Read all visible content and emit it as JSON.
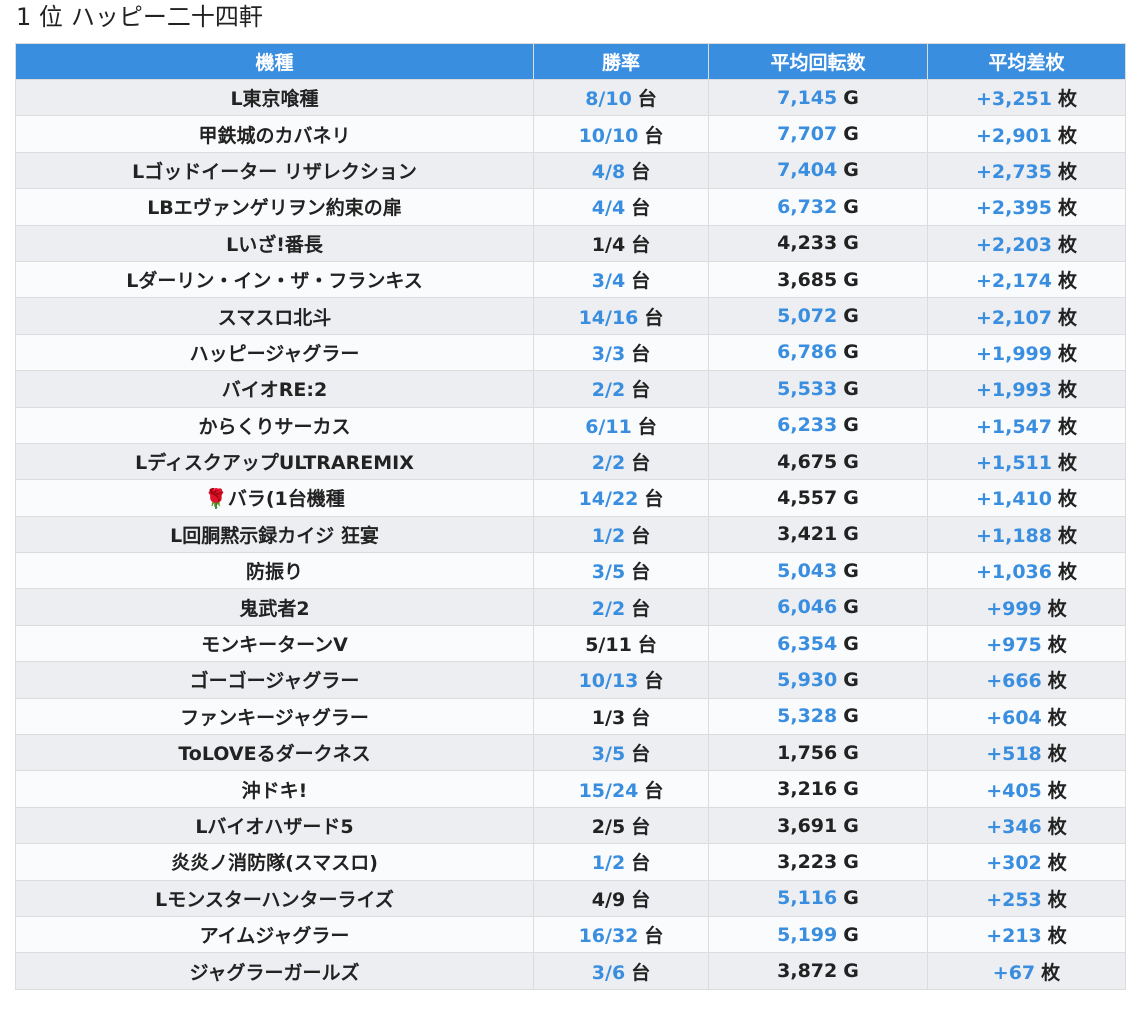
{
  "header": {
    "rank": "1 位",
    "store_name": "ハッピー二十四軒"
  },
  "table": {
    "columns": [
      "機種",
      "勝率",
      "平均回転数",
      "平均差枚"
    ],
    "units": {
      "win": "台",
      "spins": "G",
      "diff": "枚"
    },
    "colors": {
      "header_bg": "#3a8ee0",
      "highlight": "#3a8ee0",
      "normal": "#222222"
    },
    "rows": [
      {
        "machine": "L東京喰種",
        "win": "8/10",
        "win_hl": true,
        "spins": "7,145",
        "spins_hl": true,
        "diff": "+3,251",
        "diff_hl": true
      },
      {
        "machine": "甲鉄城のカバネリ",
        "win": "10/10",
        "win_hl": true,
        "spins": "7,707",
        "spins_hl": true,
        "diff": "+2,901",
        "diff_hl": true
      },
      {
        "machine": "Lゴッドイーター リザレクション",
        "win": "4/8",
        "win_hl": true,
        "spins": "7,404",
        "spins_hl": true,
        "diff": "+2,735",
        "diff_hl": true
      },
      {
        "machine": "LBエヴァンゲリヲン約束の扉",
        "win": "4/4",
        "win_hl": true,
        "spins": "6,732",
        "spins_hl": true,
        "diff": "+2,395",
        "diff_hl": true
      },
      {
        "machine": "Lいざ!番長",
        "win": "1/4",
        "win_hl": false,
        "spins": "4,233",
        "spins_hl": false,
        "diff": "+2,203",
        "diff_hl": true
      },
      {
        "machine": "Lダーリン・イン・ザ・フランキス",
        "win": "3/4",
        "win_hl": true,
        "spins": "3,685",
        "spins_hl": false,
        "diff": "+2,174",
        "diff_hl": true
      },
      {
        "machine": "スマスロ北斗",
        "win": "14/16",
        "win_hl": true,
        "spins": "5,072",
        "spins_hl": true,
        "diff": "+2,107",
        "diff_hl": true
      },
      {
        "machine": "ハッピージャグラー",
        "win": "3/3",
        "win_hl": true,
        "spins": "6,786",
        "spins_hl": true,
        "diff": "+1,999",
        "diff_hl": true
      },
      {
        "machine": "バイオRE:2",
        "win": "2/2",
        "win_hl": true,
        "spins": "5,533",
        "spins_hl": true,
        "diff": "+1,993",
        "diff_hl": true
      },
      {
        "machine": "からくりサーカス",
        "win": "6/11",
        "win_hl": true,
        "spins": "6,233",
        "spins_hl": true,
        "diff": "+1,547",
        "diff_hl": true
      },
      {
        "machine": "LディスクアップULTRAREMIX",
        "win": "2/2",
        "win_hl": true,
        "spins": "4,675",
        "spins_hl": false,
        "diff": "+1,511",
        "diff_hl": true
      },
      {
        "machine": "🌹バラ(1台機種",
        "win": "14/22",
        "win_hl": true,
        "spins": "4,557",
        "spins_hl": false,
        "diff": "+1,410",
        "diff_hl": true
      },
      {
        "machine": "L回胴黙示録カイジ 狂宴",
        "win": "1/2",
        "win_hl": true,
        "spins": "3,421",
        "spins_hl": false,
        "diff": "+1,188",
        "diff_hl": true
      },
      {
        "machine": "防振り",
        "win": "3/5",
        "win_hl": true,
        "spins": "5,043",
        "spins_hl": true,
        "diff": "+1,036",
        "diff_hl": true
      },
      {
        "machine": "鬼武者2",
        "win": "2/2",
        "win_hl": true,
        "spins": "6,046",
        "spins_hl": true,
        "diff": "+999",
        "diff_hl": true
      },
      {
        "machine": "モンキーターンV",
        "win": "5/11",
        "win_hl": false,
        "spins": "6,354",
        "spins_hl": true,
        "diff": "+975",
        "diff_hl": true
      },
      {
        "machine": "ゴーゴージャグラー",
        "win": "10/13",
        "win_hl": true,
        "spins": "5,930",
        "spins_hl": true,
        "diff": "+666",
        "diff_hl": true
      },
      {
        "machine": "ファンキージャグラー",
        "win": "1/3",
        "win_hl": false,
        "spins": "5,328",
        "spins_hl": true,
        "diff": "+604",
        "diff_hl": true
      },
      {
        "machine": "ToLOVEるダークネス",
        "win": "3/5",
        "win_hl": true,
        "spins": "1,756",
        "spins_hl": false,
        "diff": "+518",
        "diff_hl": true
      },
      {
        "machine": "沖ドキ!",
        "win": "15/24",
        "win_hl": true,
        "spins": "3,216",
        "spins_hl": false,
        "diff": "+405",
        "diff_hl": true
      },
      {
        "machine": "Lバイオハザード5",
        "win": "2/5",
        "win_hl": false,
        "spins": "3,691",
        "spins_hl": false,
        "diff": "+346",
        "diff_hl": true
      },
      {
        "machine": "炎炎ノ消防隊(スマスロ)",
        "win": "1/2",
        "win_hl": true,
        "spins": "3,223",
        "spins_hl": false,
        "diff": "+302",
        "diff_hl": true
      },
      {
        "machine": "Lモンスターハンターライズ",
        "win": "4/9",
        "win_hl": false,
        "spins": "5,116",
        "spins_hl": true,
        "diff": "+253",
        "diff_hl": true
      },
      {
        "machine": "アイムジャグラー",
        "win": "16/32",
        "win_hl": true,
        "spins": "5,199",
        "spins_hl": true,
        "diff": "+213",
        "diff_hl": true
      },
      {
        "machine": "ジャグラーガールズ",
        "win": "3/6",
        "win_hl": true,
        "spins": "3,872",
        "spins_hl": false,
        "diff": "+67",
        "diff_hl": true
      }
    ]
  }
}
